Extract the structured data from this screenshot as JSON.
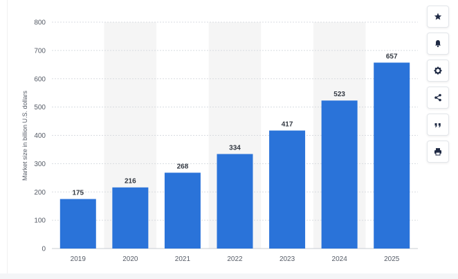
{
  "chart_data": {
    "type": "bar",
    "categories": [
      "2019",
      "2020",
      "2021",
      "2022",
      "2023",
      "2024",
      "2025"
    ],
    "values": [
      175,
      216,
      268,
      334,
      417,
      523,
      657
    ],
    "data_labels": [
      "175",
      "216",
      "268",
      "334",
      "417",
      "523",
      "657"
    ],
    "ylabel": "Market size in billion U.S. dollars",
    "xlabel": "",
    "ylim": [
      0,
      800
    ],
    "y_ticks": [
      "0",
      "100",
      "200",
      "300",
      "400",
      "500",
      "600",
      "700",
      "800"
    ],
    "grid": true,
    "alternating_column_shading": true,
    "colors": {
      "bar": "#2a73d9",
      "shade": "#f5f5f5",
      "grid": "#d8dbe0"
    }
  },
  "toolbar": {
    "buttons": [
      {
        "icon": "star-icon",
        "label": "Favorite"
      },
      {
        "icon": "bell-icon",
        "label": "Notification"
      },
      {
        "icon": "gear-icon",
        "label": "Settings"
      },
      {
        "icon": "share-icon",
        "label": "Share"
      },
      {
        "icon": "quote-icon",
        "label": "Cite"
      },
      {
        "icon": "print-icon",
        "label": "Print"
      }
    ]
  }
}
